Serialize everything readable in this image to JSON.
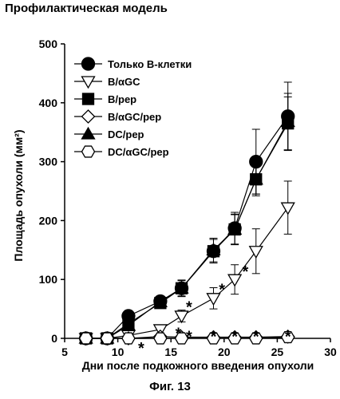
{
  "page": {
    "title": "Профилактическая модель",
    "caption": "Фиг. 13"
  },
  "chart_data": {
    "type": "line",
    "xlabel": "Дни после подкожного введения опухоли",
    "ylabel": "Площадь опухоли (мм²)",
    "xlim": [
      5,
      30
    ],
    "ylim": [
      0,
      500
    ],
    "xticks": [
      5,
      10,
      15,
      20,
      25,
      30
    ],
    "yticks": [
      0,
      100,
      200,
      300,
      400,
      500
    ],
    "legend_position": "top-left",
    "series": [
      {
        "name": "Только B-клетки",
        "marker": "circle",
        "fill": "#000000",
        "x": [
          7,
          9,
          11,
          14,
          16,
          19,
          21,
          23,
          26
        ],
        "y": [
          0,
          0,
          38,
          63,
          85,
          148,
          187,
          300,
          377
        ],
        "err": [
          0,
          0,
          8,
          8,
          14,
          20,
          27,
          55,
          58
        ]
      },
      {
        "name": "B/αGC",
        "marker": "triangle-down",
        "fill": "#ffffff",
        "x": [
          7,
          9,
          11,
          14,
          16,
          19,
          21,
          23,
          26
        ],
        "y": [
          0,
          0,
          5,
          15,
          38,
          68,
          100,
          148,
          222
        ],
        "err": [
          0,
          0,
          3,
          6,
          10,
          18,
          25,
          38,
          45
        ]
      },
      {
        "name": "B/pep",
        "marker": "square",
        "fill": "#000000",
        "x": [
          7,
          9,
          11,
          14,
          16,
          19,
          21,
          23,
          26
        ],
        "y": [
          0,
          0,
          25,
          60,
          85,
          148,
          185,
          270,
          365
        ],
        "err": [
          0,
          0,
          6,
          8,
          13,
          20,
          25,
          25,
          45
        ]
      },
      {
        "name": "B/αGC/pep",
        "marker": "diamond",
        "fill": "#ffffff",
        "x": [
          7,
          9,
          11,
          14,
          16,
          19,
          21,
          23,
          26
        ],
        "y": [
          0,
          0,
          0,
          3,
          2,
          2,
          2,
          2,
          3
        ],
        "err": [
          0,
          0,
          0,
          0,
          0,
          0,
          0,
          0,
          0
        ]
      },
      {
        "name": "DC/pep",
        "marker": "triangle-up",
        "fill": "#000000",
        "x": [
          7,
          9,
          11,
          14,
          16,
          19,
          21,
          23,
          26
        ],
        "y": [
          0,
          0,
          22,
          62,
          85,
          150,
          185,
          270,
          368
        ],
        "err": [
          0,
          0,
          6,
          8,
          14,
          20,
          26,
          28,
          48
        ]
      },
      {
        "name": "DC/αGC/pep",
        "marker": "hexagon",
        "fill": "#ffffff",
        "x": [
          7,
          9,
          11,
          14,
          16,
          19,
          21,
          23,
          26
        ],
        "y": [
          0,
          0,
          0,
          0,
          0,
          0,
          0,
          0,
          2
        ],
        "err": [
          0,
          0,
          0,
          0,
          0,
          0,
          0,
          0,
          0
        ]
      }
    ],
    "significance": [
      {
        "text": "*",
        "x": 12.2,
        "y": -15
      },
      {
        "text": "*",
        "x": 15.7,
        "y": 10
      },
      {
        "text": "*",
        "x": 16.7,
        "y": 5
      },
      {
        "text": "*",
        "x": 16.7,
        "y": 55
      },
      {
        "text": "*",
        "x": 19.0,
        "y": 5
      },
      {
        "text": "*",
        "x": 19.8,
        "y": 85
      },
      {
        "text": "*",
        "x": 21.0,
        "y": 5
      },
      {
        "text": "*",
        "x": 22.0,
        "y": 115
      },
      {
        "text": "*",
        "x": 23.0,
        "y": 5
      },
      {
        "text": "*",
        "x": 26.0,
        "y": 5
      }
    ]
  }
}
